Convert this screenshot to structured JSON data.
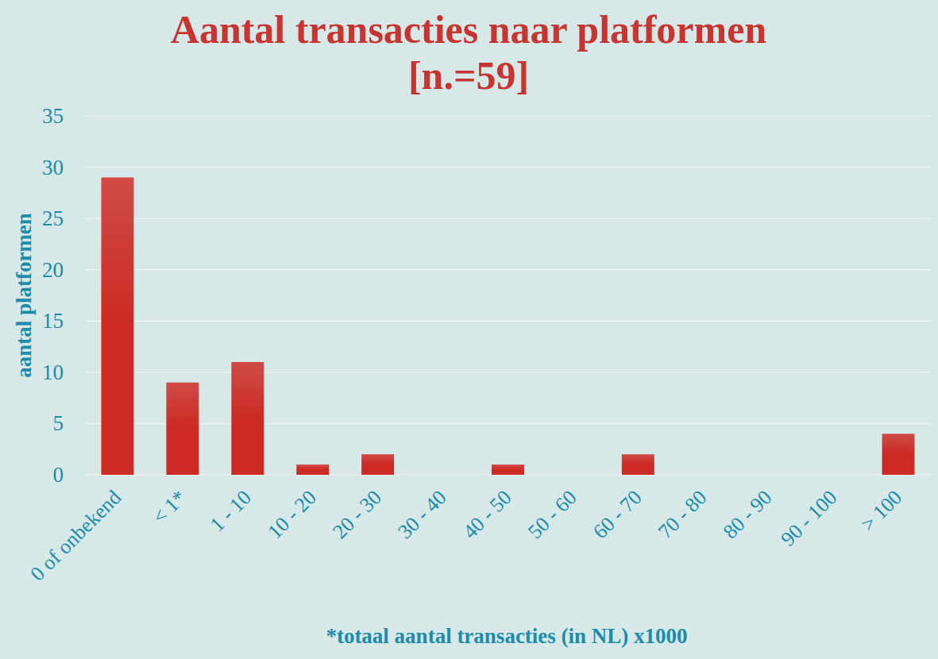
{
  "chart_data": {
    "type": "bar",
    "title": "Aantal transacties naar platformen",
    "subtitle": "[n.=59]",
    "y_label": "aantal platformen",
    "x_label": "*totaal aantal transacties (in NL) x1000",
    "categories": [
      "0 of onbekend",
      "< 1*",
      "1 - 10",
      "10 - 20",
      "20 - 30",
      "30 - 40",
      "40 - 50",
      "50 - 60",
      "60 - 70",
      "70 - 80",
      "80 - 90",
      "90 - 100",
      "> 100"
    ],
    "values": [
      29,
      9,
      11,
      1,
      2,
      0,
      1,
      0,
      2,
      0,
      0,
      0,
      4
    ],
    "color": "#cc2a22",
    "ylim": [
      0,
      35
    ],
    "yticks": [
      0,
      5,
      10,
      15,
      20,
      25,
      30,
      35
    ],
    "grid": true
  }
}
